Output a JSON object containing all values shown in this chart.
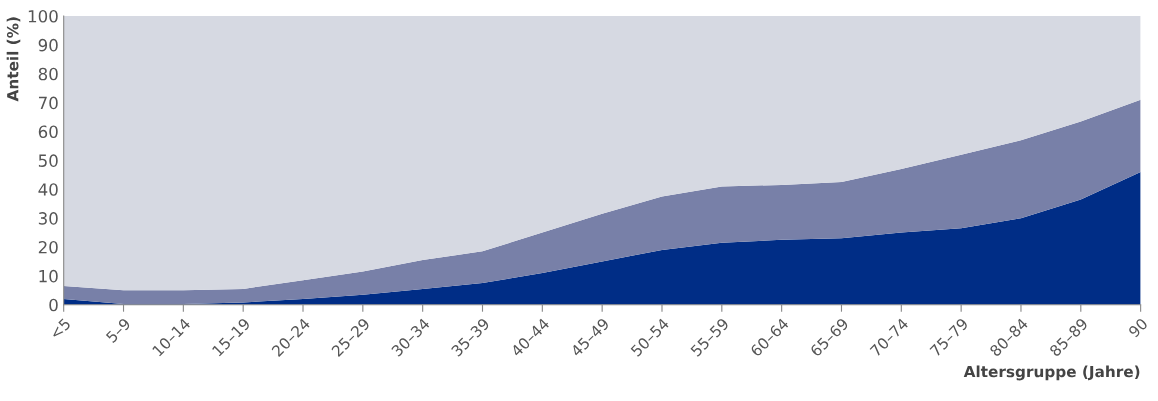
{
  "chart_data": {
    "type": "area",
    "stacked": true,
    "xlabel": "Altersgruppe (Jahre)",
    "ylabel": "Anteil (%)",
    "categories": [
      "<5",
      "5–9",
      "10–14",
      "15–19",
      "20–24",
      "25–29",
      "30–34",
      "35–39",
      "40–44",
      "45–49",
      "50–54",
      "55–59",
      "60–64",
      "65–69",
      "70–74",
      "75–79",
      "80–84",
      "85–89",
      "90"
    ],
    "series": [
      {
        "color": "#002d86",
        "values": [
          2,
          0.3,
          0.3,
          0.8,
          2,
          3.5,
          5.5,
          7.5,
          11,
          15,
          19,
          21.5,
          22.5,
          23,
          25,
          26.5,
          30,
          36.5,
          46
        ]
      },
      {
        "color": "#7880a8",
        "values": [
          4.5,
          4.7,
          4.7,
          4.7,
          6.5,
          8,
          10,
          11,
          14,
          16.5,
          18.5,
          19.5,
          19,
          19.5,
          22,
          25.5,
          27,
          27,
          25
        ]
      },
      {
        "color": "#d6d9e2",
        "values": [
          93.5,
          95,
          95,
          94.5,
          91.5,
          88.5,
          84.5,
          81.5,
          75,
          68.5,
          62.5,
          59,
          58.5,
          57.5,
          53,
          48,
          43,
          36.5,
          29
        ]
      }
    ],
    "ylim": [
      0,
      100
    ],
    "yticks": [
      0,
      10,
      20,
      30,
      40,
      50,
      60,
      70,
      80,
      90,
      100
    ],
    "grid": false
  }
}
